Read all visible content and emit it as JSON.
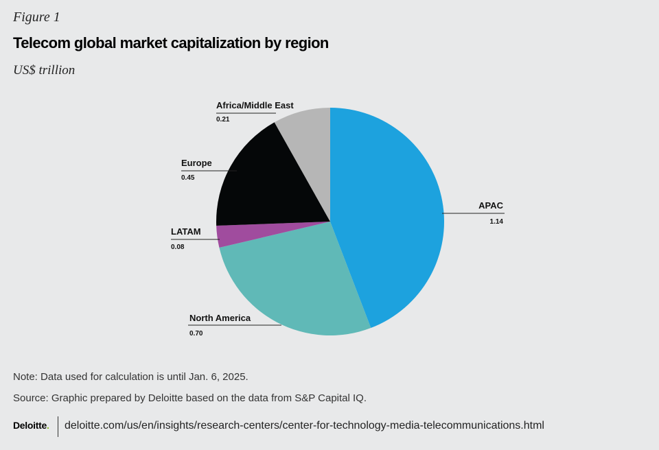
{
  "figure_label": "Figure 1",
  "title": "Telecom global market capitalization by region",
  "subtitle": "US$ trillion",
  "chart_data": {
    "type": "pie",
    "title": "Telecom global market capitalization by region",
    "unit": "US$ trillion",
    "slices": [
      {
        "label": "APAC",
        "value": 1.14,
        "value_text": "1.14",
        "color": "#1da2de"
      },
      {
        "label": "North America",
        "value": 0.7,
        "value_text": "0.70",
        "color": "#60b9b7"
      },
      {
        "label": "LATAM",
        "value": 0.08,
        "value_text": "0.08",
        "color": "#a04c9e"
      },
      {
        "label": "Europe",
        "value": 0.45,
        "value_text": "0.45",
        "color": "#050708"
      },
      {
        "label": "Africa/Middle East",
        "value": 0.21,
        "value_text": "0.21",
        "color": "#b6b6b6"
      }
    ],
    "start_angle": "12 o'clock",
    "direction": "clockwise"
  },
  "note": "Note: Data used for calculation is until Jan. 6, 2025.",
  "source": "Source: Graphic prepared by Deloitte based on the data from S&P Capital IQ.",
  "brand": {
    "name": "Deloitte",
    "dot": "."
  },
  "url": "deloitte.com/us/en/insights/research-centers/center-for-technology-media-telecommunications.html"
}
